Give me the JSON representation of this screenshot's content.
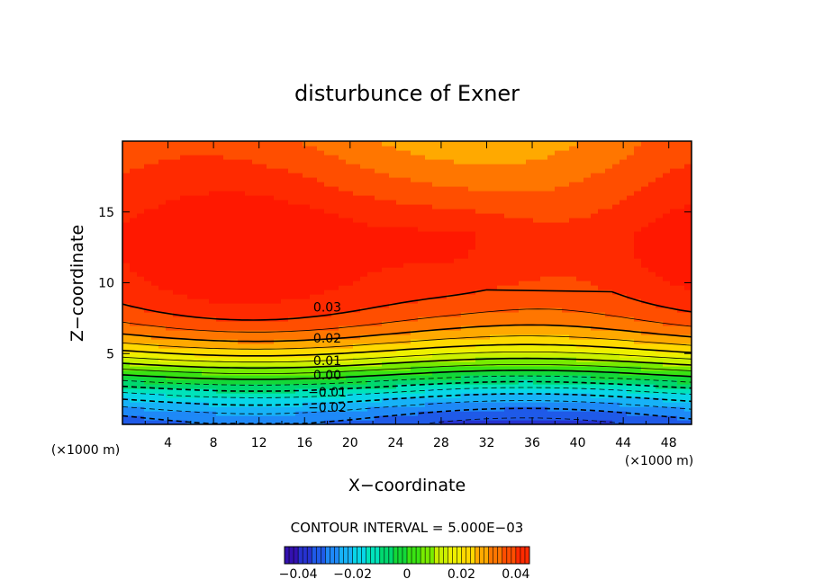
{
  "chart_data": {
    "type": "heatmap",
    "title": "disturbunce of Exner",
    "xlabel": "X−coordinate",
    "ylabel": "Z−coordinate",
    "x_unit_left": "(×1000 m)",
    "x_unit_right": "(×1000 m)",
    "xlim": [
      0,
      50
    ],
    "ylim": [
      0,
      20
    ],
    "x_ticks": [
      4,
      8,
      12,
      16,
      20,
      24,
      28,
      32,
      36,
      40,
      44,
      48
    ],
    "y_ticks": [
      5,
      10,
      15
    ],
    "contour_interval_text": "CONTOUR INTERVAL = 5.000E−03",
    "contour_interval": 0.005,
    "value_range": [
      -0.045,
      0.045
    ],
    "contour_labels": [
      {
        "text": "0.03",
        "x": 18,
        "z": 8.3
      },
      {
        "text": "0.02",
        "x": 18,
        "z": 6.1
      },
      {
        "text": "0.01",
        "x": 18,
        "z": 4.5
      },
      {
        "text": "0.00",
        "x": 18,
        "z": 3.5
      },
      {
        "text": "−0.01",
        "x": 18,
        "z": 2.3
      },
      {
        "text": "−0.02",
        "x": 18,
        "z": 1.2
      }
    ],
    "colorbar": {
      "ticks": [
        "−0.04",
        "−0.02",
        "0",
        "0.02",
        "0.04"
      ],
      "tick_values": [
        -0.04,
        -0.02,
        0,
        0.02,
        0.04
      ],
      "colors": [
        "#3b007a",
        "#1f3cd8",
        "#1aa0ff",
        "#00ffd0",
        "#00d000",
        "#c8ff00",
        "#ffd400",
        "#ff8000",
        "#ff3000",
        "#e00000"
      ]
    },
    "color_scale": [
      [
        -0.045,
        "#3a00a0"
      ],
      [
        -0.035,
        "#1f43e0"
      ],
      [
        -0.025,
        "#1ea0ff"
      ],
      [
        -0.015,
        "#00e8e0"
      ],
      [
        -0.005,
        "#00d24a"
      ],
      [
        0.005,
        "#4ce800"
      ],
      [
        0.012,
        "#c8f000"
      ],
      [
        0.02,
        "#fff000"
      ],
      [
        0.026,
        "#ffb800"
      ],
      [
        0.032,
        "#ff7a00"
      ],
      [
        0.038,
        "#ff4a00"
      ],
      [
        0.045,
        "#ff1800"
      ]
    ]
  }
}
